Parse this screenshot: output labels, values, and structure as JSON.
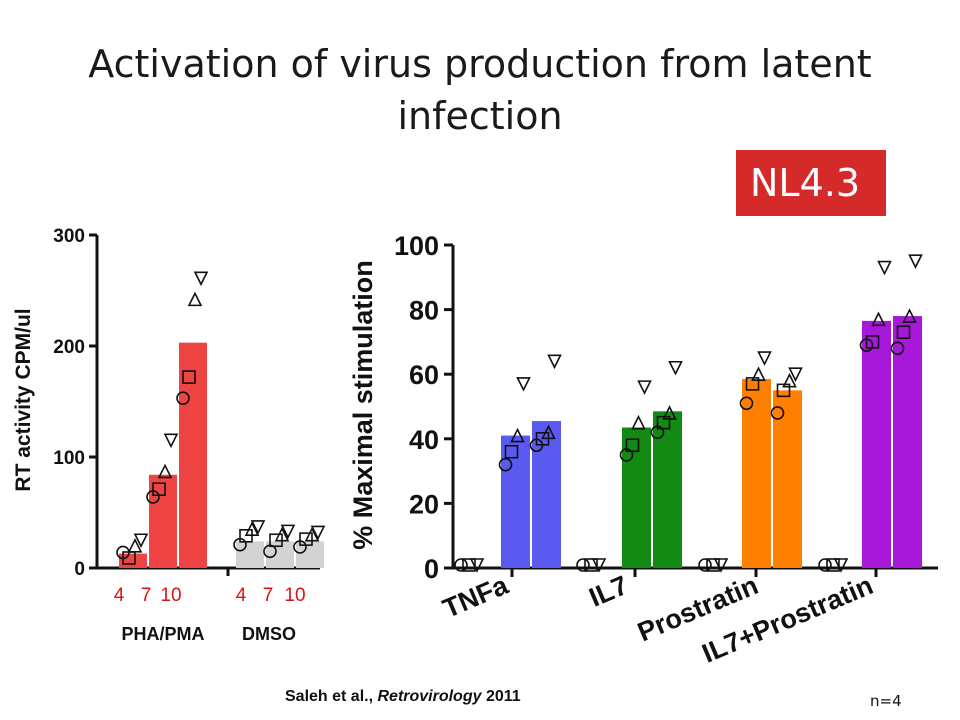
{
  "slide": {
    "title": "Activation of virus production from latent infection",
    "badge": "NL4.3",
    "citation_prefix": "Saleh et al., ",
    "citation_journal": "Retrovirology",
    "citation_year": " 2011",
    "footnote": "n=4"
  },
  "chart_data": [
    {
      "type": "bar",
      "ylabel": "RT activity CPM/ul",
      "ylim": [
        0,
        300
      ],
      "yticks": [
        0,
        100,
        200,
        300
      ],
      "groups": [
        {
          "label": "PHA/PMA",
          "color": "#ee4444",
          "categories": [
            "4",
            "7",
            "10"
          ],
          "values": [
            13,
            84,
            203
          ],
          "points": [
            [
              14,
              9,
              20,
              25
            ],
            [
              64,
              71,
              87,
              115
            ],
            [
              153,
              172,
              242,
              261
            ]
          ]
        },
        {
          "label": "DMSO",
          "color": "#d3d3d3",
          "categories": [
            "4",
            "7",
            "10"
          ],
          "values": [
            24,
            24,
            24
          ],
          "points": [
            [
              21,
              29,
              35,
              37
            ],
            [
              15,
              25,
              30,
              33
            ],
            [
              19,
              26,
              30,
              32
            ]
          ]
        }
      ],
      "grid": false
    },
    {
      "type": "bar",
      "ylabel": "% Maximal stimulation",
      "ylim": [
        0,
        100
      ],
      "yticks": [
        0,
        20,
        40,
        60,
        80,
        100
      ],
      "categories": [
        "TNFa",
        "IL7",
        "Prostratin",
        "IL7+Prostratin"
      ],
      "colors": [
        "#5a5af0",
        "#138a13",
        "#ff8000",
        "#a818d8"
      ],
      "bars": [
        [
          41,
          45.5
        ],
        [
          43.5,
          48.5
        ],
        [
          58.5,
          55
        ],
        [
          76.5,
          78
        ]
      ],
      "points": [
        [
          [
            32,
            36,
            41,
            57
          ],
          [
            38,
            40,
            42,
            64
          ]
        ],
        [
          [
            35,
            38,
            45,
            56
          ],
          [
            42,
            45,
            48,
            62
          ]
        ],
        [
          [
            51,
            57,
            60,
            65
          ],
          [
            48,
            55,
            58,
            60
          ]
        ],
        [
          [
            69,
            70,
            77,
            93
          ],
          [
            68,
            73,
            78,
            95
          ]
        ]
      ],
      "grid": false
    }
  ]
}
